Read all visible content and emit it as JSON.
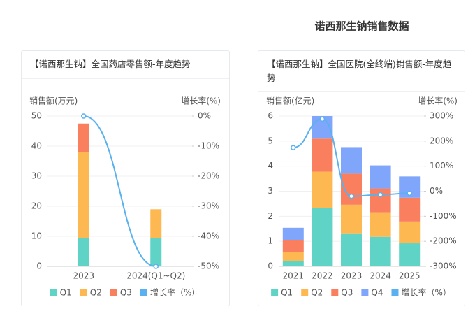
{
  "title": "诺西那生钠销售数据",
  "chart_data": [
    {
      "type": "bar",
      "title": "【诺西那生钠】全国药店零售额-年度趋势",
      "y_label": "销售额(万元)",
      "y2_label": "增长率(%)",
      "categories": [
        "2023",
        "2024(Q1~Q2)"
      ],
      "series": [
        {
          "name": "Q1",
          "color": "#5fd3c5",
          "values": [
            9.5,
            9.5
          ]
        },
        {
          "name": "Q2",
          "color": "#fdb852",
          "values": [
            28.5,
            9.5
          ]
        },
        {
          "name": "Q3",
          "color": "#fa7f5e",
          "values": [
            9.5,
            null
          ]
        },
        {
          "name": "增长率（%）",
          "type": "line",
          "axis": "y2",
          "color": "#5ab1ef",
          "values": [
            0,
            -50
          ]
        }
      ],
      "ylim": [
        0,
        50
      ],
      "yticks": [
        0,
        10,
        20,
        30,
        40,
        50
      ],
      "y2lim": [
        -50,
        0
      ],
      "y2ticks": [
        {
          "value": 0,
          "label": "0%"
        },
        {
          "value": -10,
          "label": "-10%"
        },
        {
          "value": -20,
          "label": "-20%"
        },
        {
          "value": -30,
          "label": "-30%"
        },
        {
          "value": -40,
          "label": "-40%"
        },
        {
          "value": -50,
          "label": "-50%"
        }
      ],
      "stacked": true
    },
    {
      "type": "bar",
      "title": "【诺西那生钠】全国医院(全终端)销售额-年度趋势",
      "y_label": "销售额(亿元)",
      "y2_label": "增长率(%)",
      "categories": [
        "2021",
        "2022",
        "2023",
        "2024",
        "2025"
      ],
      "series": [
        {
          "name": "Q1",
          "color": "#5fd3c5",
          "values": [
            0.22,
            2.32,
            1.32,
            1.18,
            0.92
          ]
        },
        {
          "name": "Q2",
          "color": "#fdb852",
          "values": [
            0.34,
            1.46,
            1.14,
            0.98,
            0.87
          ]
        },
        {
          "name": "Q3",
          "color": "#fa7f5e",
          "values": [
            0.5,
            1.32,
            1.24,
            0.95,
            0.95
          ]
        },
        {
          "name": "Q4",
          "color": "#7fa6fb",
          "values": [
            0.48,
            0.9,
            1.06,
            0.92,
            0.85
          ]
        },
        {
          "name": "增长率（%）",
          "type": "line",
          "axis": "y2",
          "color": "#5ab1ef",
          "values": [
            174,
            288,
            -20,
            -14,
            -8
          ]
        }
      ],
      "ylim": [
        0,
        6
      ],
      "yticks": [
        0,
        1,
        2,
        3,
        4,
        5,
        6
      ],
      "y2lim": [
        -300,
        300
      ],
      "y2ticks": [
        {
          "value": 300,
          "label": "300%"
        },
        {
          "value": 200,
          "label": "200%"
        },
        {
          "value": 100,
          "label": "100%"
        },
        {
          "value": 0,
          "label": "0%"
        },
        {
          "value": -100,
          "label": "-100%"
        },
        {
          "value": -200,
          "label": "-200%"
        },
        {
          "value": -300,
          "label": "-300%"
        }
      ],
      "stacked": true
    }
  ]
}
